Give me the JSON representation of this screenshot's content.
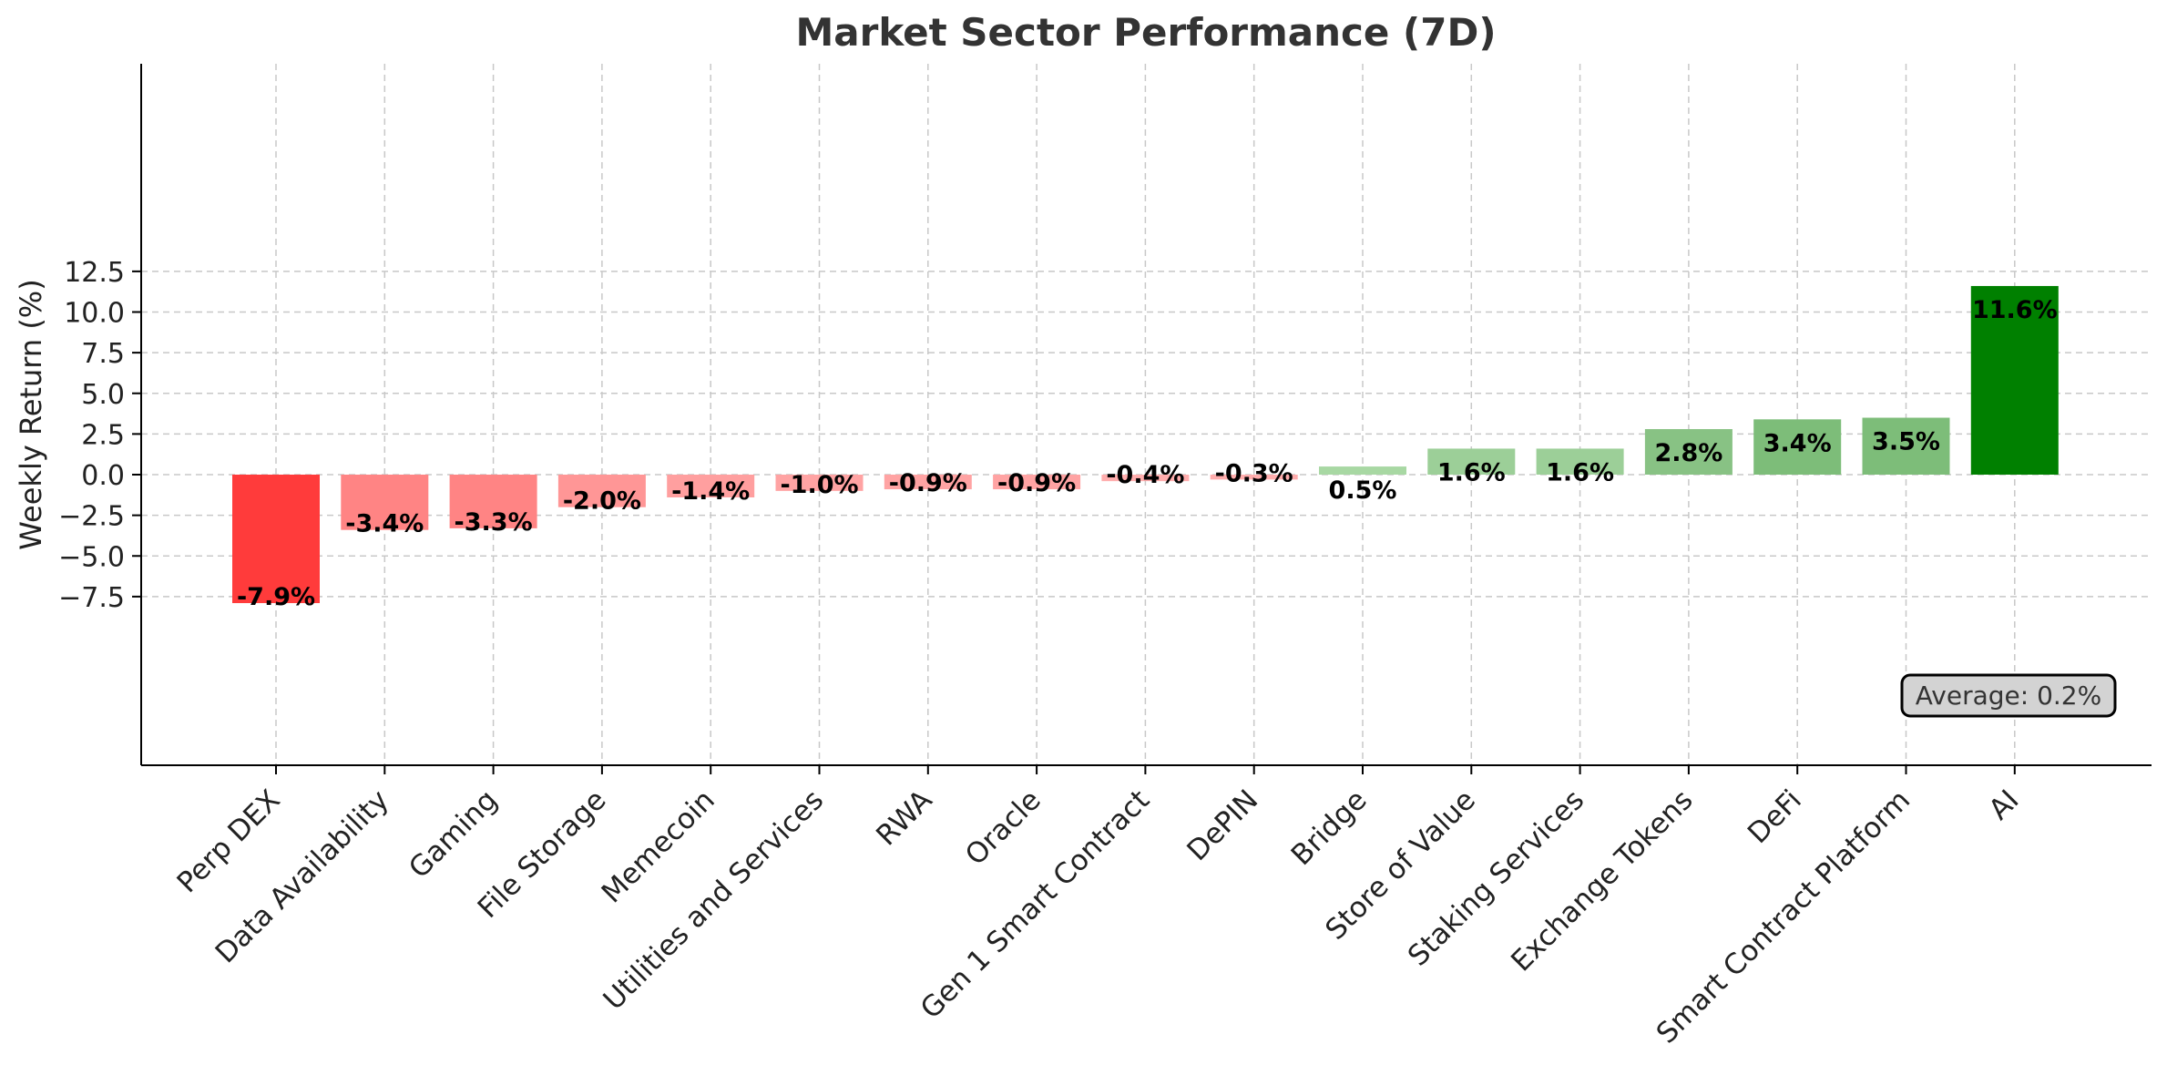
{
  "chart_data": {
    "type": "bar",
    "title": "Market Sector Performance (7D)",
    "xlabel": "",
    "ylabel": "Weekly Return (%)",
    "ylim": [
      -8.9,
      12.5
    ],
    "yticks": [
      -7.5,
      -5.0,
      -2.5,
      0.0,
      2.5,
      5.0,
      7.5,
      10.0,
      12.5
    ],
    "ytick_labels": [
      "−7.5",
      "−5.0",
      "−2.5",
      "0.0",
      "2.5",
      "5.0",
      "7.5",
      "10.0",
      "12.5"
    ],
    "grid": true,
    "categories": [
      "Perp DEX",
      "Data Availability",
      "Gaming",
      "File Storage",
      "Memecoin",
      "Utilities and Services",
      "RWA",
      "Oracle",
      "Gen 1 Smart Contract",
      "DePIN",
      "Bridge",
      "Store of Value",
      "Staking Services",
      "Exchange Tokens",
      "DeFi",
      "Smart Contract Platform",
      "AI"
    ],
    "values": [
      -7.9,
      -3.4,
      -3.3,
      -2.0,
      -1.4,
      -1.0,
      -0.9,
      -0.9,
      -0.4,
      -0.3,
      0.5,
      1.6,
      1.6,
      2.8,
      3.4,
      3.5,
      11.6
    ],
    "labels": [
      "-7.9%",
      "-3.4%",
      "-3.3%",
      "-2.0%",
      "-1.4%",
      "-1.0%",
      "-0.9%",
      "-0.9%",
      "-0.4%",
      "-0.3%",
      "0.5%",
      "1.6%",
      "1.6%",
      "2.8%",
      "3.4%",
      "3.5%",
      "11.6%"
    ],
    "colors": [
      "#ff3b3b",
      "#ff8484",
      "#ff8484",
      "#ff9696",
      "#ff9f9f",
      "#ffa3a3",
      "#ffa3a3",
      "#ffa3a3",
      "#ffadad",
      "#ffadad",
      "#a8d8a3",
      "#9ccf98",
      "#9ccf98",
      "#88c284",
      "#7dbd79",
      "#7dbd79",
      "#008000"
    ],
    "annotation": "Average: 0.2%"
  }
}
